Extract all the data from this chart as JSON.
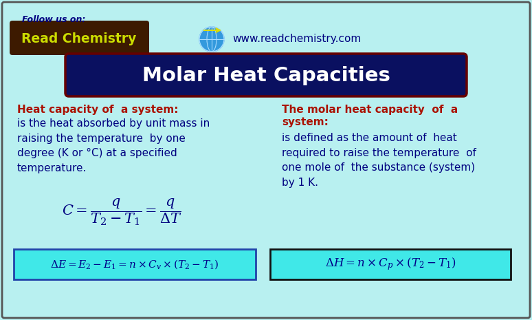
{
  "background_color": "#b8f0f0",
  "title": "Molar Heat Capacities",
  "title_bg": "#0a1060",
  "title_color": "#ffffff",
  "follow_us": "Follow us on:",
  "website": "www.readchemistry.com",
  "read_chemistry_color": "#ccdd00",
  "read_chemistry_bg": "#3d1a00",
  "left_heading": "Heat capacity of  a system:",
  "left_heading_color": "#aa1100",
  "left_body_color": "#000080",
  "right_heading_color": "#aa1100",
  "right_body_color": "#000080",
  "formula_color": "#000080",
  "formula2_box_color": "#40e8e8",
  "formula2_border": "#2244aa",
  "formula3_box_color": "#40e8e8",
  "formula3_border": "#111111",
  "border_color": "#555555"
}
